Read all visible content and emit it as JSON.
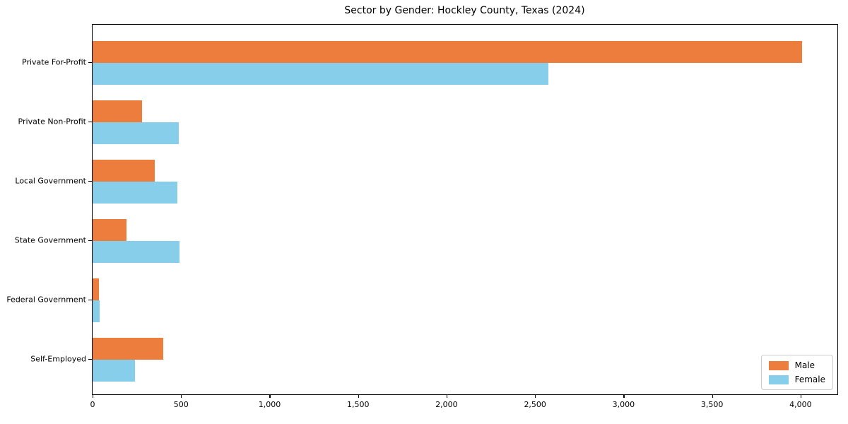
{
  "chart_data": {
    "type": "bar",
    "orientation": "horizontal",
    "title": "Sector by Gender: Hockley County, Texas (2024)",
    "categories": [
      "Private For-Profit",
      "Private Non-Profit",
      "Local Government",
      "State Government",
      "Federal Government",
      "Self-Employed"
    ],
    "series": [
      {
        "name": "Male",
        "color": "#ec7d3c",
        "values": [
          4008,
          278,
          350,
          190,
          36,
          400
        ]
      },
      {
        "name": "Female",
        "color": "#87ceeb",
        "values": [
          2576,
          485,
          478,
          490,
          40,
          240
        ]
      }
    ],
    "xlabel": "",
    "ylabel": "",
    "xlim": [
      0,
      4208
    ],
    "xticks": {
      "values": [
        0,
        500,
        1000,
        1500,
        2000,
        2500,
        3000,
        3500,
        4000
      ],
      "labels": [
        "0",
        "500",
        "1,000",
        "1,500",
        "2,000",
        "2,500",
        "3,000",
        "3,500",
        "4,000"
      ]
    },
    "grid": false,
    "legend_position": "lower right",
    "colors": {
      "background": "#ffffff",
      "axis_border": "#000000",
      "legend_border": "#cccccc"
    }
  }
}
